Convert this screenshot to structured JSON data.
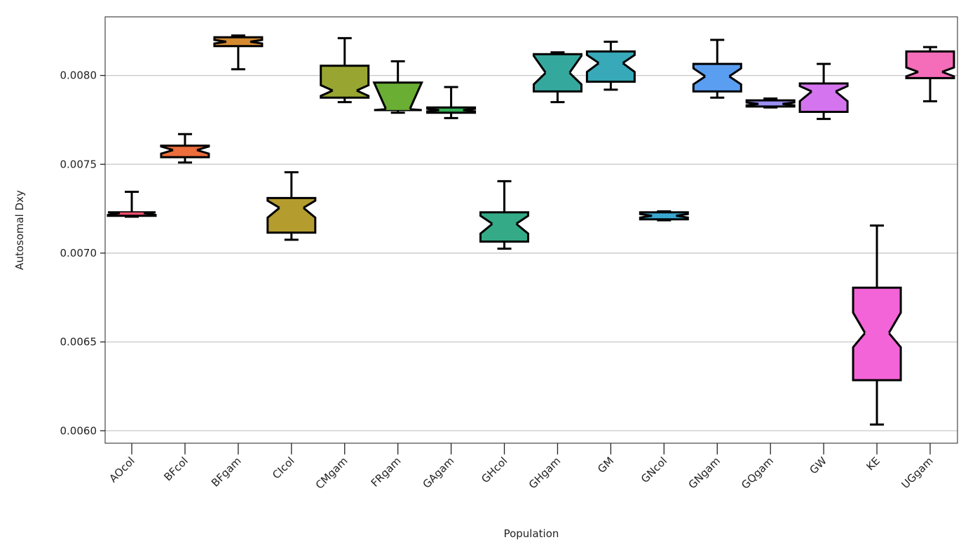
{
  "chart_data": {
    "type": "box",
    "xlabel": "Population",
    "ylabel": "Autosomal Dxy",
    "ylim": [
      0.00593,
      0.00833
    ],
    "yticks": [
      0.006,
      0.0065,
      0.007,
      0.0075,
      0.008
    ],
    "ytick_labels": [
      "0.0060",
      "0.0065",
      "0.0070",
      "0.0075",
      "0.0080"
    ],
    "grid": "horizontal",
    "notched": true,
    "categories": [
      "AOcol",
      "BFcol",
      "BFgam",
      "CIcol",
      "CMgam",
      "FRgam",
      "GAgam",
      "GHcol",
      "GHgam",
      "GM",
      "GNcol",
      "GNgam",
      "GQgam",
      "GW",
      "KE",
      "UGgam"
    ],
    "boxes": [
      {
        "name": "AOcol",
        "color": "#f0506f",
        "whislo": 0.007205,
        "q1": 0.00721,
        "med": 0.007225,
        "q3": 0.00723,
        "whishi": 0.007345,
        "notch_lo": 0.007215,
        "notch_hi": 0.00723
      },
      {
        "name": "BFcol",
        "color": "#ec6e3c",
        "whislo": 0.00751,
        "q1": 0.00754,
        "med": 0.00758,
        "q3": 0.007605,
        "whishi": 0.00767,
        "notch_lo": 0.00756,
        "notch_hi": 0.0076
      },
      {
        "name": "BFgam",
        "color": "#d58a31",
        "whislo": 0.008035,
        "q1": 0.008165,
        "med": 0.00819,
        "q3": 0.008215,
        "whishi": 0.008225,
        "notch_lo": 0.00818,
        "notch_hi": 0.0082
      },
      {
        "name": "CIcol",
        "color": "#b49c2f",
        "whislo": 0.007075,
        "q1": 0.007115,
        "med": 0.007255,
        "q3": 0.00731,
        "whishi": 0.007455,
        "notch_lo": 0.0072,
        "notch_hi": 0.007295
      },
      {
        "name": "CMgam",
        "color": "#98a531",
        "whislo": 0.00785,
        "q1": 0.007875,
        "med": 0.007915,
        "q3": 0.008055,
        "whishi": 0.00821,
        "notch_lo": 0.007885,
        "notch_hi": 0.007945
      },
      {
        "name": "FRgam",
        "color": "#6aaf34",
        "whislo": 0.00779,
        "q1": 0.007805,
        "med": 0.00781,
        "q3": 0.00796,
        "whishi": 0.00808,
        "notch_lo": 0.007805,
        "notch_hi": 0.00796
      },
      {
        "name": "GAgam",
        "color": "#36ad55",
        "whislo": 0.00776,
        "q1": 0.00779,
        "med": 0.007805,
        "q3": 0.00782,
        "whishi": 0.007935,
        "notch_lo": 0.007798,
        "notch_hi": 0.007812
      },
      {
        "name": "GHcol",
        "color": "#34ab86",
        "whislo": 0.007025,
        "q1": 0.007065,
        "med": 0.007165,
        "q3": 0.00723,
        "whishi": 0.007405,
        "notch_lo": 0.00711,
        "notch_hi": 0.00721
      },
      {
        "name": "GHgam",
        "color": "#35a89e",
        "whislo": 0.00785,
        "q1": 0.00791,
        "med": 0.008015,
        "q3": 0.00812,
        "whishi": 0.00813,
        "notch_lo": 0.00795,
        "notch_hi": 0.00811
      },
      {
        "name": "GM",
        "color": "#37a9b8",
        "whislo": 0.00792,
        "q1": 0.007965,
        "med": 0.00807,
        "q3": 0.008135,
        "whishi": 0.00819,
        "notch_lo": 0.00802,
        "notch_hi": 0.008115
      },
      {
        "name": "GNcol",
        "color": "#3aa8d1",
        "whislo": 0.007185,
        "q1": 0.00719,
        "med": 0.00721,
        "q3": 0.00723,
        "whishi": 0.007235,
        "notch_lo": 0.0072,
        "notch_hi": 0.00722
      },
      {
        "name": "GNgam",
        "color": "#5a9ef2",
        "whislo": 0.007875,
        "q1": 0.00791,
        "med": 0.007995,
        "q3": 0.008065,
        "whishi": 0.0082,
        "notch_lo": 0.00795,
        "notch_hi": 0.00804
      },
      {
        "name": "GQgam",
        "color": "#9a8ff2",
        "whislo": 0.00782,
        "q1": 0.007825,
        "med": 0.00784,
        "q3": 0.00786,
        "whishi": 0.00787,
        "notch_lo": 0.007832,
        "notch_hi": 0.007848
      },
      {
        "name": "GW",
        "color": "#d574ef",
        "whislo": 0.007755,
        "q1": 0.007795,
        "med": 0.00791,
        "q3": 0.007955,
        "whishi": 0.008065,
        "notch_lo": 0.007855,
        "notch_hi": 0.00794
      },
      {
        "name": "KE",
        "color": "#f364d9",
        "whislo": 0.006035,
        "q1": 0.006285,
        "med": 0.00655,
        "q3": 0.006805,
        "whishi": 0.007155,
        "notch_lo": 0.00647,
        "notch_hi": 0.006665
      },
      {
        "name": "UGgam",
        "color": "#f56cb8",
        "whislo": 0.007855,
        "q1": 0.007985,
        "med": 0.00802,
        "q3": 0.008135,
        "whishi": 0.00816,
        "notch_lo": 0.007995,
        "notch_hi": 0.008045
      }
    ]
  }
}
